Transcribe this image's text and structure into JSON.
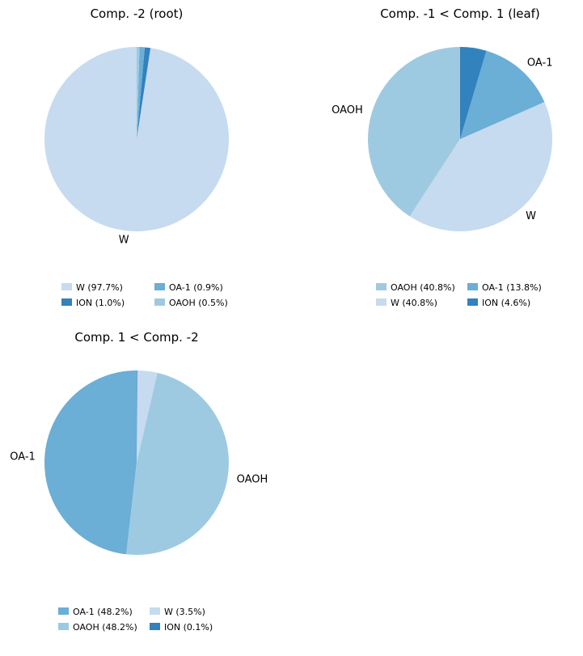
{
  "colors": {
    "W": "#c6dbef",
    "ION": "#3182bd",
    "OA-1": "#6baed6",
    "OAOH": "#9ecae1"
  },
  "chart_data": [
    {
      "type": "pie",
      "title": "Comp. -2 (root)",
      "slices": [
        {
          "name": "W",
          "value": 97.7,
          "label": "W"
        },
        {
          "name": "ION",
          "value": 1.0,
          "label": ""
        },
        {
          "name": "OA-1",
          "value": 0.9,
          "label": ""
        },
        {
          "name": "OAOH",
          "value": 0.5,
          "label": ""
        }
      ],
      "legend": [
        [
          "W (97.7%)",
          "OA-1 (0.9%)"
        ],
        [
          "ION (1.0%)",
          "OAOH (0.5%)"
        ]
      ],
      "legend_colors": [
        [
          "W",
          "OA-1"
        ],
        [
          "ION",
          "OAOH"
        ]
      ],
      "legend_placement": "below"
    },
    {
      "type": "pie",
      "title": "Comp. -1 < Comp. 1 (leaf)",
      "slices": [
        {
          "name": "OAOH",
          "value": 40.8,
          "label": "OAOH"
        },
        {
          "name": "W",
          "value": 40.8,
          "label": "W"
        },
        {
          "name": "OA-1",
          "value": 13.8,
          "label": "OA-1"
        },
        {
          "name": "ION",
          "value": 4.6,
          "label": ""
        }
      ],
      "legend": [
        [
          "OAOH (40.8%)",
          "OA-1 (13.8%)"
        ],
        [
          "W (40.8%)",
          "ION (4.6%)"
        ]
      ],
      "legend_colors": [
        [
          "OAOH",
          "OA-1"
        ],
        [
          "W",
          "ION"
        ]
      ],
      "legend_placement": "below"
    },
    {
      "type": "pie",
      "title": "Comp. 1 < Comp. -2",
      "slices": [
        {
          "name": "OA-1",
          "value": 48.2,
          "label": "OA-1"
        },
        {
          "name": "OAOH",
          "value": 48.2,
          "label": "OAOH"
        },
        {
          "name": "W",
          "value": 3.5,
          "label": ""
        },
        {
          "name": "ION",
          "value": 0.1,
          "label": ""
        }
      ],
      "legend": [
        [
          "OA-1 (48.2%)",
          "W (3.5%)"
        ],
        [
          "OAOH (48.2%)",
          "ION (0.1%)"
        ]
      ],
      "legend_colors": [
        [
          "OA-1",
          "W"
        ],
        [
          "OAOH",
          "ION"
        ]
      ],
      "legend_placement": "below"
    }
  ]
}
